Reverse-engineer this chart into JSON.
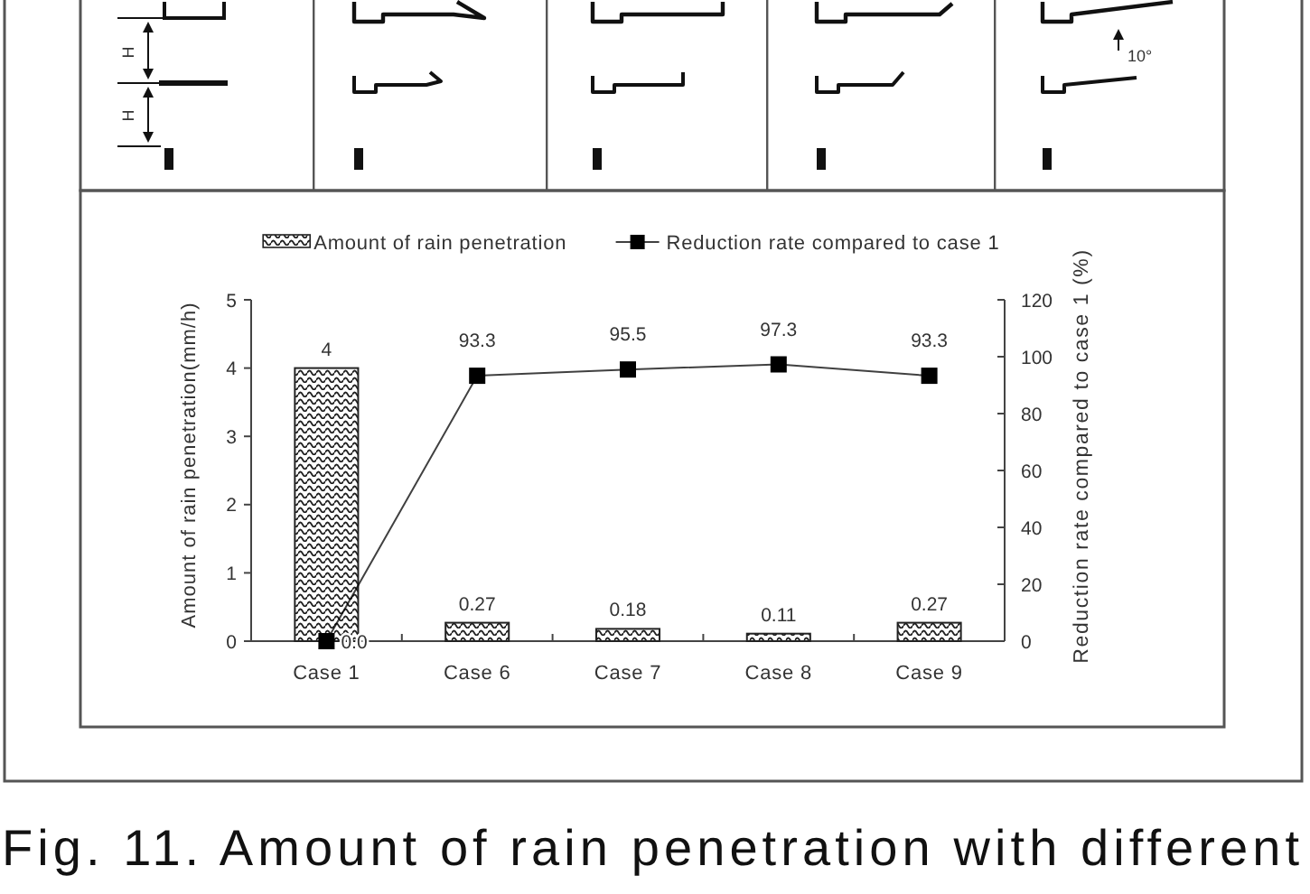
{
  "chart_data": {
    "type": "bar",
    "categories": [
      "Case 1",
      "Case 6",
      "Case 7",
      "Case 8",
      "Case 9"
    ],
    "series": [
      {
        "name": "Amount of rain penetration",
        "color": "#222222",
        "values": [
          4,
          0.27,
          0.18,
          0.11,
          0.27
        ],
        "value_labels": [
          "4",
          "0.27",
          "0.18",
          "0.11",
          "0.27"
        ]
      },
      {
        "name": "Reduction rate compared to case 1",
        "type": "line",
        "axis": "y2",
        "color": "#000000",
        "marker": "square",
        "values": [
          0,
          93.3,
          95.5,
          97.3,
          93.3
        ],
        "value_labels": [
          "0.0",
          "93.3",
          "95.5",
          "97.3",
          "93.3"
        ]
      }
    ],
    "ylabel": "Amount of rain penetration(mm/h)",
    "y2label": "Reduction rate compared to case 1 (%)",
    "ylim": [
      0,
      5
    ],
    "yticks": [
      0,
      1,
      2,
      3,
      4,
      5
    ],
    "y2lim": [
      0,
      120
    ],
    "y2ticks": [
      0,
      20,
      40,
      60,
      80,
      100,
      120
    ],
    "legend": "top",
    "annotations": [
      "H",
      "H",
      "10°",
      "Fig. 11. Amount of rain penetration with different"
    ]
  }
}
